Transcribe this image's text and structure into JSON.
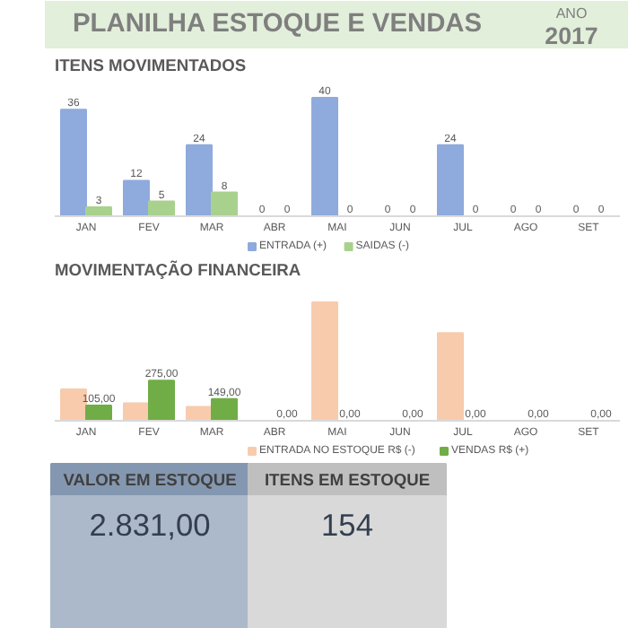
{
  "chart_data": [
    {
      "type": "other",
      "title": "PLANILHA ESTOQUE E VENDAS",
      "annotations": [
        "ANO",
        "2017"
      ],
      "colors": [
        "#e2efda"
      ]
    },
    {
      "type": "bar",
      "title": "ITENS MOVIMENTADOS",
      "categories": [
        "JAN",
        "FEV",
        "MAR",
        "ABR",
        "MAI",
        "JUN",
        "JUL",
        "AGO",
        "SET"
      ],
      "data_labels": true,
      "legend": "bottom",
      "grid": false,
      "series": [
        {
          "name": "ENTRADA (+)",
          "color": "#8faadc",
          "values": [
            36,
            12,
            24,
            0,
            40,
            0,
            24,
            0,
            0
          ]
        },
        {
          "name": "SAIDAS (-)",
          "color": "#a9d18e",
          "values": [
            3,
            5,
            8,
            0,
            0,
            0,
            0,
            0,
            0
          ]
        }
      ]
    },
    {
      "type": "bar",
      "title": "MOVIMENTAÇÃO FINANCEIRA",
      "categories": [
        "JAN",
        "FEV",
        "MAR",
        "ABR",
        "MAI",
        "JUN",
        "JUL",
        "AGO",
        "SET"
      ],
      "legend": "bottom",
      "grid": false,
      "series": [
        {
          "name": "ENTRADA NO ESTOQUE R$ (-)",
          "color": "#f8cbad",
          "values": [
            215,
            120,
            95,
            0,
            810,
            0,
            600,
            0,
            0
          ]
        },
        {
          "name": "VENDAS R$ (+)",
          "color": "#70ad47",
          "values": [
            105,
            275,
            149,
            0,
            0,
            0,
            0,
            0,
            0
          ],
          "value_labels": [
            "105,00",
            "275,00",
            "149,00",
            "0,00",
            "0,00",
            "0,00",
            "0,00",
            "0,00",
            "0,00"
          ]
        }
      ]
    },
    {
      "type": "other",
      "annotations": [
        "VALOR EM ESTOQUE",
        "2.831,00",
        "ITENS EM ESTOQUE",
        "154"
      ],
      "colors": [
        "#8497b0",
        "#acb9ca",
        "#bfbfbf",
        "#d9d9d9"
      ]
    }
  ]
}
